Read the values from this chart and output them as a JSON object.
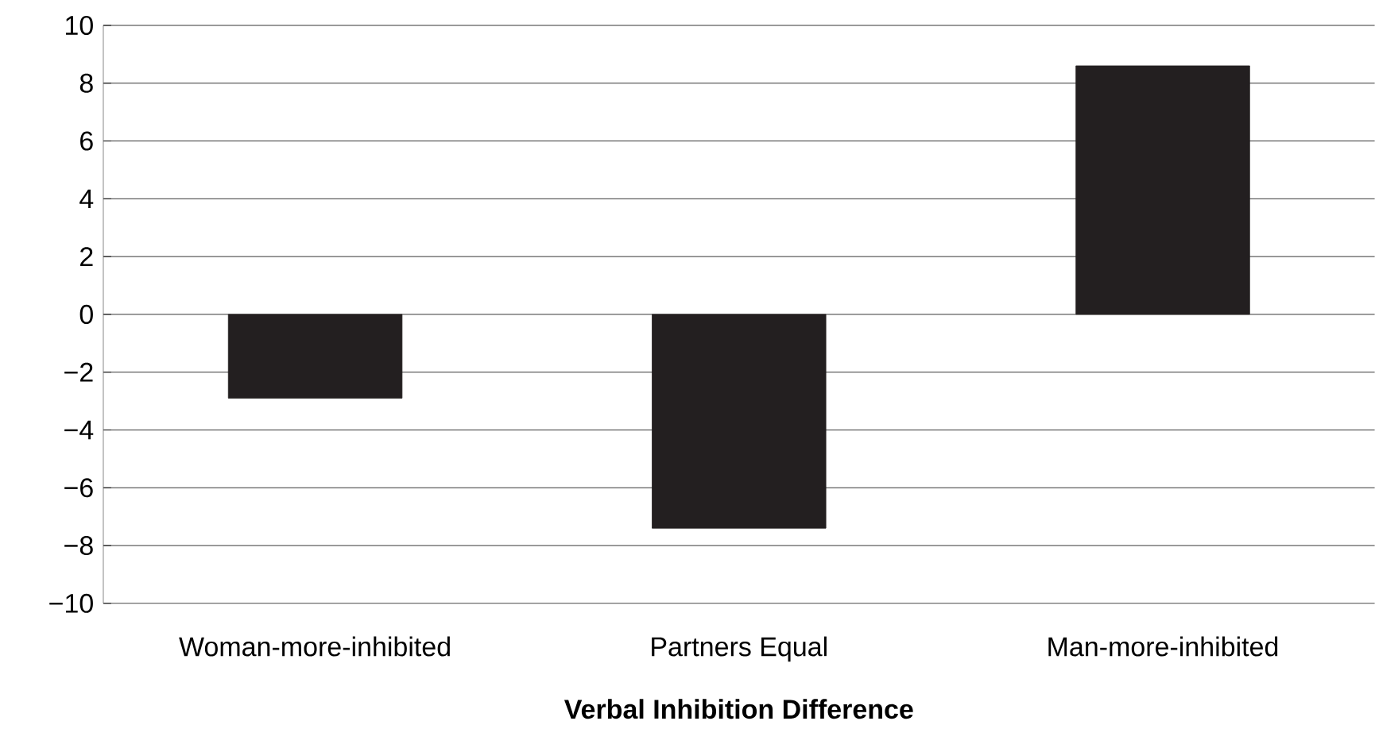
{
  "chart_data": {
    "type": "bar",
    "xlabel": "Verbal Inhibition Difference",
    "categories": [
      "Woman-more-inhibited",
      "Partners Equal",
      "Man-more-inhibited"
    ],
    "values": [
      -2.9,
      -7.4,
      8.6
    ],
    "color": "#231f20",
    "ylim": [
      -10,
      10
    ],
    "yticks": [
      {
        "value": -10,
        "label": "−10"
      },
      {
        "value": -8,
        "label": "−8"
      },
      {
        "value": -6,
        "label": "−6"
      },
      {
        "value": -4,
        "label": "−4"
      },
      {
        "value": -2,
        "label": "−2"
      },
      0,
      2,
      4,
      6,
      8,
      10
    ],
    "grid": "y"
  }
}
